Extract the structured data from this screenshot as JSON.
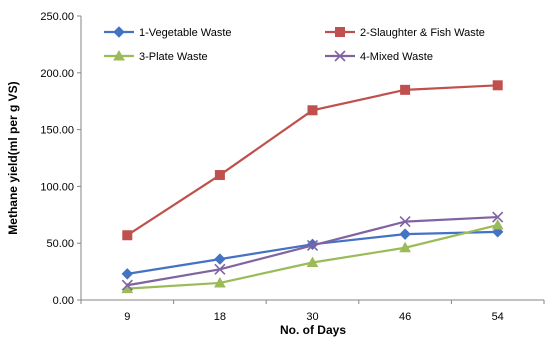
{
  "chart_data": {
    "type": "line",
    "title": "",
    "xlabel": "No. of Days",
    "ylabel": "Methane yield(ml per g VS)",
    "categories": [
      "9",
      "18",
      "30",
      "46",
      "54"
    ],
    "ylim": [
      0,
      250
    ],
    "y_ticks": [
      "0.00",
      "50.00",
      "100.00",
      "150.00",
      "200.00",
      "250.00"
    ],
    "grid": false,
    "legend_position": "top",
    "series": [
      {
        "name": "1-Vegetable Waste",
        "values": [
          23,
          36,
          49,
          58,
          60
        ],
        "color": "#4472C4",
        "marker": "diamond"
      },
      {
        "name": "2-Slaughter & Fish Waste",
        "values": [
          57,
          110,
          167,
          185,
          189
        ],
        "color": "#C0504D",
        "marker": "square"
      },
      {
        "name": "3-Plate Waste",
        "values": [
          10,
          15,
          33,
          46,
          66
        ],
        "color": "#9BBB59",
        "marker": "triangle"
      },
      {
        "name": "4-Mixed Waste",
        "values": [
          13,
          27,
          48,
          69,
          73
        ],
        "color": "#8064A2",
        "marker": "x"
      }
    ]
  }
}
